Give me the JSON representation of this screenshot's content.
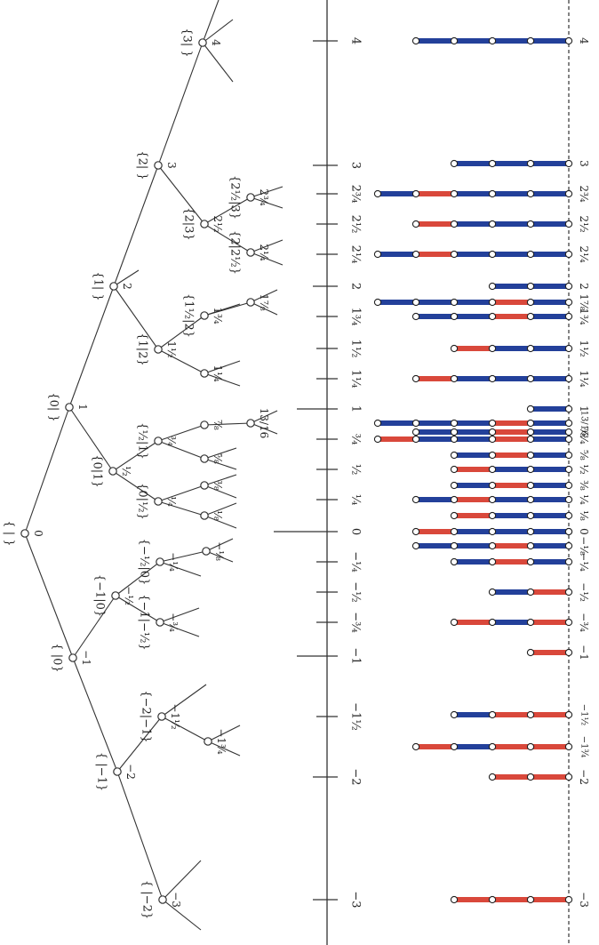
{
  "colors": {
    "red": "#d9483b",
    "blue": "#23409a",
    "line": "#333333",
    "paper": "#ffffff"
  },
  "tree": {
    "nodes": [
      {
        "id": "n0",
        "label": "{ | }",
        "value": "0"
      },
      {
        "id": "n1",
        "label": "{0| }",
        "value": "1"
      },
      {
        "id": "n2",
        "label": "{1| }",
        "value": "2"
      },
      {
        "id": "n3",
        "label": "{2| }",
        "value": "3"
      },
      {
        "id": "n4",
        "label": "{3| }",
        "value": "4"
      },
      {
        "id": "nm1",
        "label": "{ |0}",
        "value": "−1"
      },
      {
        "id": "nm2",
        "label": "{ |−1}",
        "value": "−2"
      },
      {
        "id": "nm3",
        "label": "{ |−2}",
        "value": "−3"
      },
      {
        "id": "nh",
        "label": "{0|1}",
        "value": "½"
      },
      {
        "id": "nq",
        "label": "{0|½}",
        "value": "¼"
      },
      {
        "id": "n34",
        "label": "{½|1}",
        "value": "¾"
      },
      {
        "id": "n78",
        "label": "",
        "value": "⅞"
      },
      {
        "id": "n58",
        "label": "",
        "value": "⅝"
      },
      {
        "id": "n38",
        "label": "",
        "value": "⅜"
      },
      {
        "id": "n18",
        "label": "",
        "value": "⅛"
      },
      {
        "id": "n1316",
        "label": "",
        "value": "13/16"
      },
      {
        "id": "n112",
        "label": "{1|2}",
        "value": "1½"
      },
      {
        "id": "n114",
        "label": "",
        "value": "1¼"
      },
      {
        "id": "n134",
        "label": "{1½|2}",
        "value": "1¾"
      },
      {
        "id": "n178",
        "label": "",
        "value": "1⅞"
      },
      {
        "id": "n212",
        "label": "{2|3}",
        "value": "2½"
      },
      {
        "id": "n214",
        "label": "{2|2½}",
        "value": "2¼"
      },
      {
        "id": "n234",
        "label": "{2½|3}",
        "value": "2¾"
      },
      {
        "id": "nmh",
        "label": "{−1|0}",
        "value": "−½"
      },
      {
        "id": "nmq",
        "label": "{−½|0}",
        "value": "−¼"
      },
      {
        "id": "nm18",
        "label": "",
        "value": "−⅛"
      },
      {
        "id": "nm34",
        "label": "{−1|−½}",
        "value": "−¾"
      },
      {
        "id": "nm112",
        "label": "{−2|−1}",
        "value": "−1½"
      },
      {
        "id": "nm134",
        "label": "",
        "value": "−1¾"
      }
    ]
  },
  "number_line": {
    "ticks": [
      {
        "id": "t4",
        "label": "4"
      },
      {
        "id": "t3",
        "label": "3"
      },
      {
        "id": "t234",
        "label": "2¾"
      },
      {
        "id": "t212",
        "label": "2½"
      },
      {
        "id": "t214",
        "label": "2¼"
      },
      {
        "id": "t2",
        "label": "2"
      },
      {
        "id": "t134",
        "label": "1¾"
      },
      {
        "id": "t112",
        "label": "1½"
      },
      {
        "id": "t114",
        "label": "1¼"
      },
      {
        "id": "t1",
        "label": "1"
      },
      {
        "id": "t34",
        "label": "¾"
      },
      {
        "id": "t12",
        "label": "½"
      },
      {
        "id": "t14",
        "label": "¼"
      },
      {
        "id": "t0",
        "label": "0"
      },
      {
        "id": "tm14",
        "label": "−¼"
      },
      {
        "id": "tm12",
        "label": "−½"
      },
      {
        "id": "tm34",
        "label": "−¾"
      },
      {
        "id": "tm1",
        "label": "−1"
      },
      {
        "id": "tm112",
        "label": "−1½"
      },
      {
        "id": "tm2",
        "label": "−2"
      },
      {
        "id": "tm3",
        "label": "−3"
      }
    ],
    "right_labels": [
      "4",
      "3",
      "2¾",
      "2½",
      "2¼",
      "2",
      "1⅞",
      "1¾",
      "1½",
      "1¼",
      "1",
      "13/16",
      "⅞",
      "¾",
      "⅝",
      "½",
      "⅜",
      "¼",
      "⅛",
      "0",
      "−⅛",
      "−¼",
      "−½",
      "−¾",
      "−1",
      "−1½",
      "−1¾",
      "−2",
      "−3"
    ]
  },
  "bars": [
    {
      "id": "b4",
      "colors": [
        "blue",
        "blue",
        "blue",
        "blue"
      ]
    },
    {
      "id": "b3",
      "colors": [
        "blue",
        "blue",
        "blue"
      ]
    },
    {
      "id": "b234",
      "colors": [
        "blue",
        "red",
        "blue",
        "blue",
        "blue"
      ]
    },
    {
      "id": "b212",
      "colors": [
        "red",
        "blue",
        "blue",
        "blue"
      ]
    },
    {
      "id": "b214",
      "colors": [
        "blue",
        "red",
        "blue",
        "blue",
        "blue"
      ]
    },
    {
      "id": "b2",
      "colors": [
        "blue",
        "blue"
      ]
    },
    {
      "id": "b178",
      "colors": [
        "blue",
        "blue",
        "blue",
        "red",
        "blue"
      ]
    },
    {
      "id": "b134",
      "colors": [
        "blue",
        "blue",
        "red",
        "blue"
      ]
    },
    {
      "id": "b112",
      "colors": [
        "red",
        "blue",
        "blue"
      ]
    },
    {
      "id": "b114",
      "colors": [
        "red",
        "blue",
        "blue",
        "blue"
      ]
    },
    {
      "id": "b1",
      "colors": [
        "blue"
      ]
    },
    {
      "id": "b1316",
      "colors": [
        "blue",
        "blue",
        "blue",
        "red",
        "blue"
      ]
    },
    {
      "id": "b78",
      "colors": [
        "blue",
        "blue",
        "red",
        "blue"
      ]
    },
    {
      "id": "b34",
      "colors": [
        "red",
        "blue",
        "blue",
        "red",
        "blue"
      ]
    },
    {
      "id": "b58",
      "colors": [
        "blue",
        "red",
        "blue"
      ]
    },
    {
      "id": "b12",
      "colors": [
        "red",
        "blue",
        "blue"
      ]
    },
    {
      "id": "b38",
      "colors": [
        "blue",
        "red",
        "blue"
      ]
    },
    {
      "id": "b14",
      "colors": [
        "blue",
        "red",
        "blue",
        "blue"
      ]
    },
    {
      "id": "b18",
      "colors": [
        "red",
        "blue",
        "blue"
      ]
    },
    {
      "id": "b0",
      "colors": [
        "red",
        "blue",
        "blue",
        "blue"
      ]
    },
    {
      "id": "bm18",
      "colors": [
        "blue",
        "blue",
        "red",
        "blue"
      ]
    },
    {
      "id": "bm14",
      "colors": [
        "blue",
        "red",
        "blue"
      ]
    },
    {
      "id": "bm12",
      "colors": [
        "blue",
        "red"
      ]
    },
    {
      "id": "bm34",
      "colors": [
        "red",
        "blue",
        "red"
      ]
    },
    {
      "id": "bm1",
      "colors": [
        "red"
      ]
    },
    {
      "id": "bm112",
      "colors": [
        "blue",
        "red",
        "red"
      ]
    },
    {
      "id": "bm134",
      "colors": [
        "red",
        "blue",
        "red",
        "red"
      ]
    },
    {
      "id": "bm2",
      "colors": [
        "red",
        "red"
      ]
    },
    {
      "id": "bm3",
      "colors": [
        "red",
        "red",
        "red"
      ]
    }
  ]
}
